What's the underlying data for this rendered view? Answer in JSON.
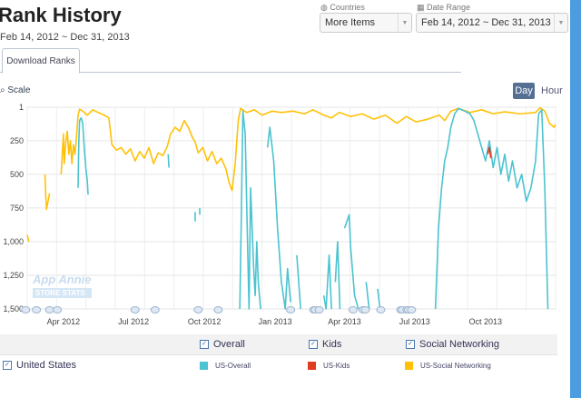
{
  "header": {
    "title": "Rank History",
    "date_range_text": "Feb 14, 2012 ~ Dec 31, 2013"
  },
  "filters": {
    "countries_label": "Countries",
    "countries_value": "More Items",
    "date_label": "Date Range",
    "date_value": "Feb 14, 2012 ~ Dec 31, 2013"
  },
  "tabs": [
    {
      "label": "Download Ranks",
      "active": true
    }
  ],
  "controls": {
    "scale_label": "Scale",
    "day_label": "Day",
    "hour_label": "Hour"
  },
  "watermark": {
    "line1": "App Annie",
    "line2": "STORE STATS"
  },
  "legend": {
    "categories": [
      {
        "label": "Overall",
        "checked": true
      },
      {
        "label": "Kids",
        "checked": true
      },
      {
        "label": "Social Networking",
        "checked": true
      }
    ],
    "country": {
      "label": "United States",
      "checked": true
    },
    "series": [
      {
        "label": "US-Overall",
        "color": "#4bc3d0"
      },
      {
        "label": "US-Kids",
        "color": "#e03c1f"
      },
      {
        "label": "US-Social Networking",
        "color": "#ffc107"
      }
    ]
  },
  "chart_data": {
    "type": "line",
    "x_unit": "days since Feb 14, 2012",
    "xlim": [
      0,
      686
    ],
    "ylim": [
      1,
      1500
    ],
    "y_reversed": true,
    "yticks": [
      {
        "v": 1,
        "label": "1"
      },
      {
        "v": 250,
        "label": "250"
      },
      {
        "v": 500,
        "label": "500"
      },
      {
        "v": 750,
        "label": "750"
      },
      {
        "v": 1000,
        "label": "1,000"
      },
      {
        "v": 1250,
        "label": "1,250"
      },
      {
        "v": 1500,
        "label": "1,500"
      }
    ],
    "xticks": [
      {
        "v": 47,
        "label": "Apr 2012"
      },
      {
        "v": 138,
        "label": "Jul 2012"
      },
      {
        "v": 230,
        "label": "Oct 2012"
      },
      {
        "v": 322,
        "label": "Jan 2013"
      },
      {
        "v": 412,
        "label": "Apr 2013"
      },
      {
        "v": 503,
        "label": "Jul 2013"
      },
      {
        "v": 595,
        "label": "Oct 2013"
      }
    ],
    "annotations_days": [
      -2,
      12,
      29,
      39,
      140,
      166,
      222,
      248,
      342,
      372,
      374,
      379,
      423,
      436,
      439,
      459,
      485,
      487,
      493,
      495,
      499
    ],
    "series": [
      {
        "name": "US-Social Networking",
        "color": "#ffc107",
        "points": [
          [
            0,
            950
          ],
          [
            2,
            1000
          ],
          null,
          [
            23,
            500
          ],
          [
            24,
            650
          ],
          [
            25,
            760
          ],
          [
            27,
            700
          ],
          [
            29,
            640
          ],
          null,
          [
            44,
            500
          ],
          [
            46,
            300
          ],
          [
            47,
            200
          ],
          [
            48,
            420
          ],
          [
            50,
            260
          ],
          [
            52,
            180
          ],
          [
            54,
            350
          ],
          [
            56,
            250
          ],
          [
            58,
            420
          ],
          [
            60,
            280
          ],
          [
            62,
            350
          ],
          [
            64,
            220
          ],
          [
            66,
            60
          ],
          [
            68,
            15
          ],
          [
            72,
            30
          ],
          [
            78,
            60
          ],
          [
            85,
            20
          ],
          [
            92,
            40
          ],
          [
            100,
            60
          ],
          [
            106,
            80
          ],
          [
            110,
            280
          ],
          [
            116,
            320
          ],
          [
            122,
            300
          ],
          [
            128,
            350
          ],
          [
            134,
            310
          ],
          [
            140,
            400
          ],
          [
            146,
            330
          ],
          [
            152,
            380
          ],
          [
            158,
            300
          ],
          [
            164,
            420
          ],
          [
            170,
            340
          ],
          [
            176,
            360
          ],
          [
            182,
            290
          ],
          [
            186,
            200
          ],
          [
            192,
            150
          ],
          [
            198,
            180
          ],
          [
            204,
            100
          ],
          [
            210,
            160
          ],
          [
            214,
            220
          ],
          [
            218,
            260
          ],
          [
            222,
            340
          ],
          [
            228,
            300
          ],
          [
            234,
            400
          ],
          [
            240,
            330
          ],
          [
            246,
            420
          ],
          [
            252,
            380
          ],
          [
            258,
            460
          ],
          [
            262,
            560
          ],
          [
            266,
            620
          ],
          [
            270,
            420
          ],
          [
            274,
            100
          ],
          [
            277,
            10
          ],
          [
            285,
            40
          ],
          [
            295,
            20
          ],
          [
            305,
            60
          ],
          [
            318,
            30
          ],
          [
            330,
            40
          ],
          [
            345,
            30
          ],
          [
            360,
            50
          ],
          [
            371,
            20
          ],
          [
            385,
            60
          ],
          [
            395,
            80
          ],
          [
            405,
            40
          ],
          [
            420,
            70
          ],
          [
            435,
            50
          ],
          [
            450,
            90
          ],
          [
            465,
            60
          ],
          [
            480,
            120
          ],
          [
            492,
            70
          ],
          [
            505,
            110
          ],
          [
            520,
            90
          ],
          [
            535,
            60
          ],
          [
            542,
            100
          ],
          [
            550,
            30
          ],
          [
            560,
            10
          ],
          [
            575,
            40
          ],
          [
            590,
            20
          ],
          [
            605,
            50
          ],
          [
            620,
            35
          ],
          [
            640,
            50
          ],
          [
            660,
            40
          ],
          [
            666,
            5
          ],
          [
            672,
            30
          ],
          [
            678,
            120
          ],
          [
            684,
            150
          ],
          [
            686,
            130
          ]
        ]
      },
      {
        "name": "US-Overall",
        "color": "#4bc3d0",
        "points": [
          [
            66,
            600
          ],
          [
            67,
            250
          ],
          [
            68,
            100
          ],
          [
            70,
            80
          ],
          [
            72,
            120
          ],
          [
            74,
            300
          ],
          [
            76,
            450
          ],
          [
            78,
            550
          ],
          [
            79,
            650
          ],
          null,
          [
            183,
            350
          ],
          [
            184,
            450
          ],
          null,
          [
            218,
            780
          ],
          [
            218,
            850
          ],
          null,
          [
            224,
            750
          ],
          [
            224,
            800
          ],
          null,
          [
            276,
            1500
          ],
          [
            278,
            800
          ],
          [
            280,
            30
          ],
          [
            283,
            200
          ],
          [
            286,
            1000
          ],
          [
            288,
            1500
          ],
          [
            290,
            600
          ],
          [
            292,
            900
          ],
          [
            294,
            1200
          ],
          [
            296,
            1400
          ],
          [
            298,
            1000
          ],
          [
            300,
            1300
          ],
          [
            303,
            1500
          ],
          null,
          [
            312,
            300
          ],
          [
            315,
            150
          ],
          [
            320,
            400
          ],
          [
            325,
            900
          ],
          [
            330,
            1300
          ],
          [
            335,
            1500
          ],
          [
            338,
            1200
          ],
          [
            342,
            1450
          ],
          null,
          [
            350,
            1100
          ],
          [
            355,
            1500
          ],
          null,
          [
            385,
            1400
          ],
          [
            388,
            1500
          ],
          [
            392,
            1100
          ],
          [
            395,
            1500
          ],
          null,
          [
            400,
            1300
          ],
          [
            403,
            1000
          ],
          [
            406,
            1500
          ],
          null,
          [
            412,
            900
          ],
          [
            418,
            800
          ],
          [
            420,
            1050
          ],
          [
            425,
            1400
          ],
          [
            430,
            1500
          ],
          null,
          [
            440,
            1300
          ],
          [
            444,
            1500
          ],
          null,
          [
            455,
            1350
          ],
          [
            458,
            1500
          ],
          null,
          [
            530,
            1500
          ],
          [
            534,
            900
          ],
          [
            538,
            600
          ],
          [
            542,
            400
          ],
          [
            546,
            300
          ],
          [
            550,
            150
          ],
          [
            555,
            50
          ],
          [
            560,
            10
          ],
          [
            568,
            30
          ],
          [
            575,
            50
          ],
          [
            580,
            100
          ],
          [
            585,
            200
          ],
          [
            590,
            300
          ],
          [
            595,
            400
          ],
          [
            600,
            250
          ],
          [
            605,
            450
          ],
          [
            610,
            300
          ],
          [
            615,
            500
          ],
          [
            620,
            350
          ],
          [
            625,
            550
          ],
          [
            630,
            400
          ],
          [
            636,
            600
          ],
          [
            642,
            500
          ],
          [
            648,
            700
          ],
          [
            654,
            600
          ],
          [
            660,
            400
          ],
          [
            664,
            50
          ],
          [
            668,
            20
          ],
          [
            672,
            600
          ],
          [
            676,
            1500
          ]
        ]
      },
      {
        "name": "US-Kids",
        "color": "#e03c1f",
        "points": [
          [
            598,
            350
          ],
          [
            600,
            300
          ],
          [
            602,
            380
          ]
        ]
      }
    ]
  }
}
